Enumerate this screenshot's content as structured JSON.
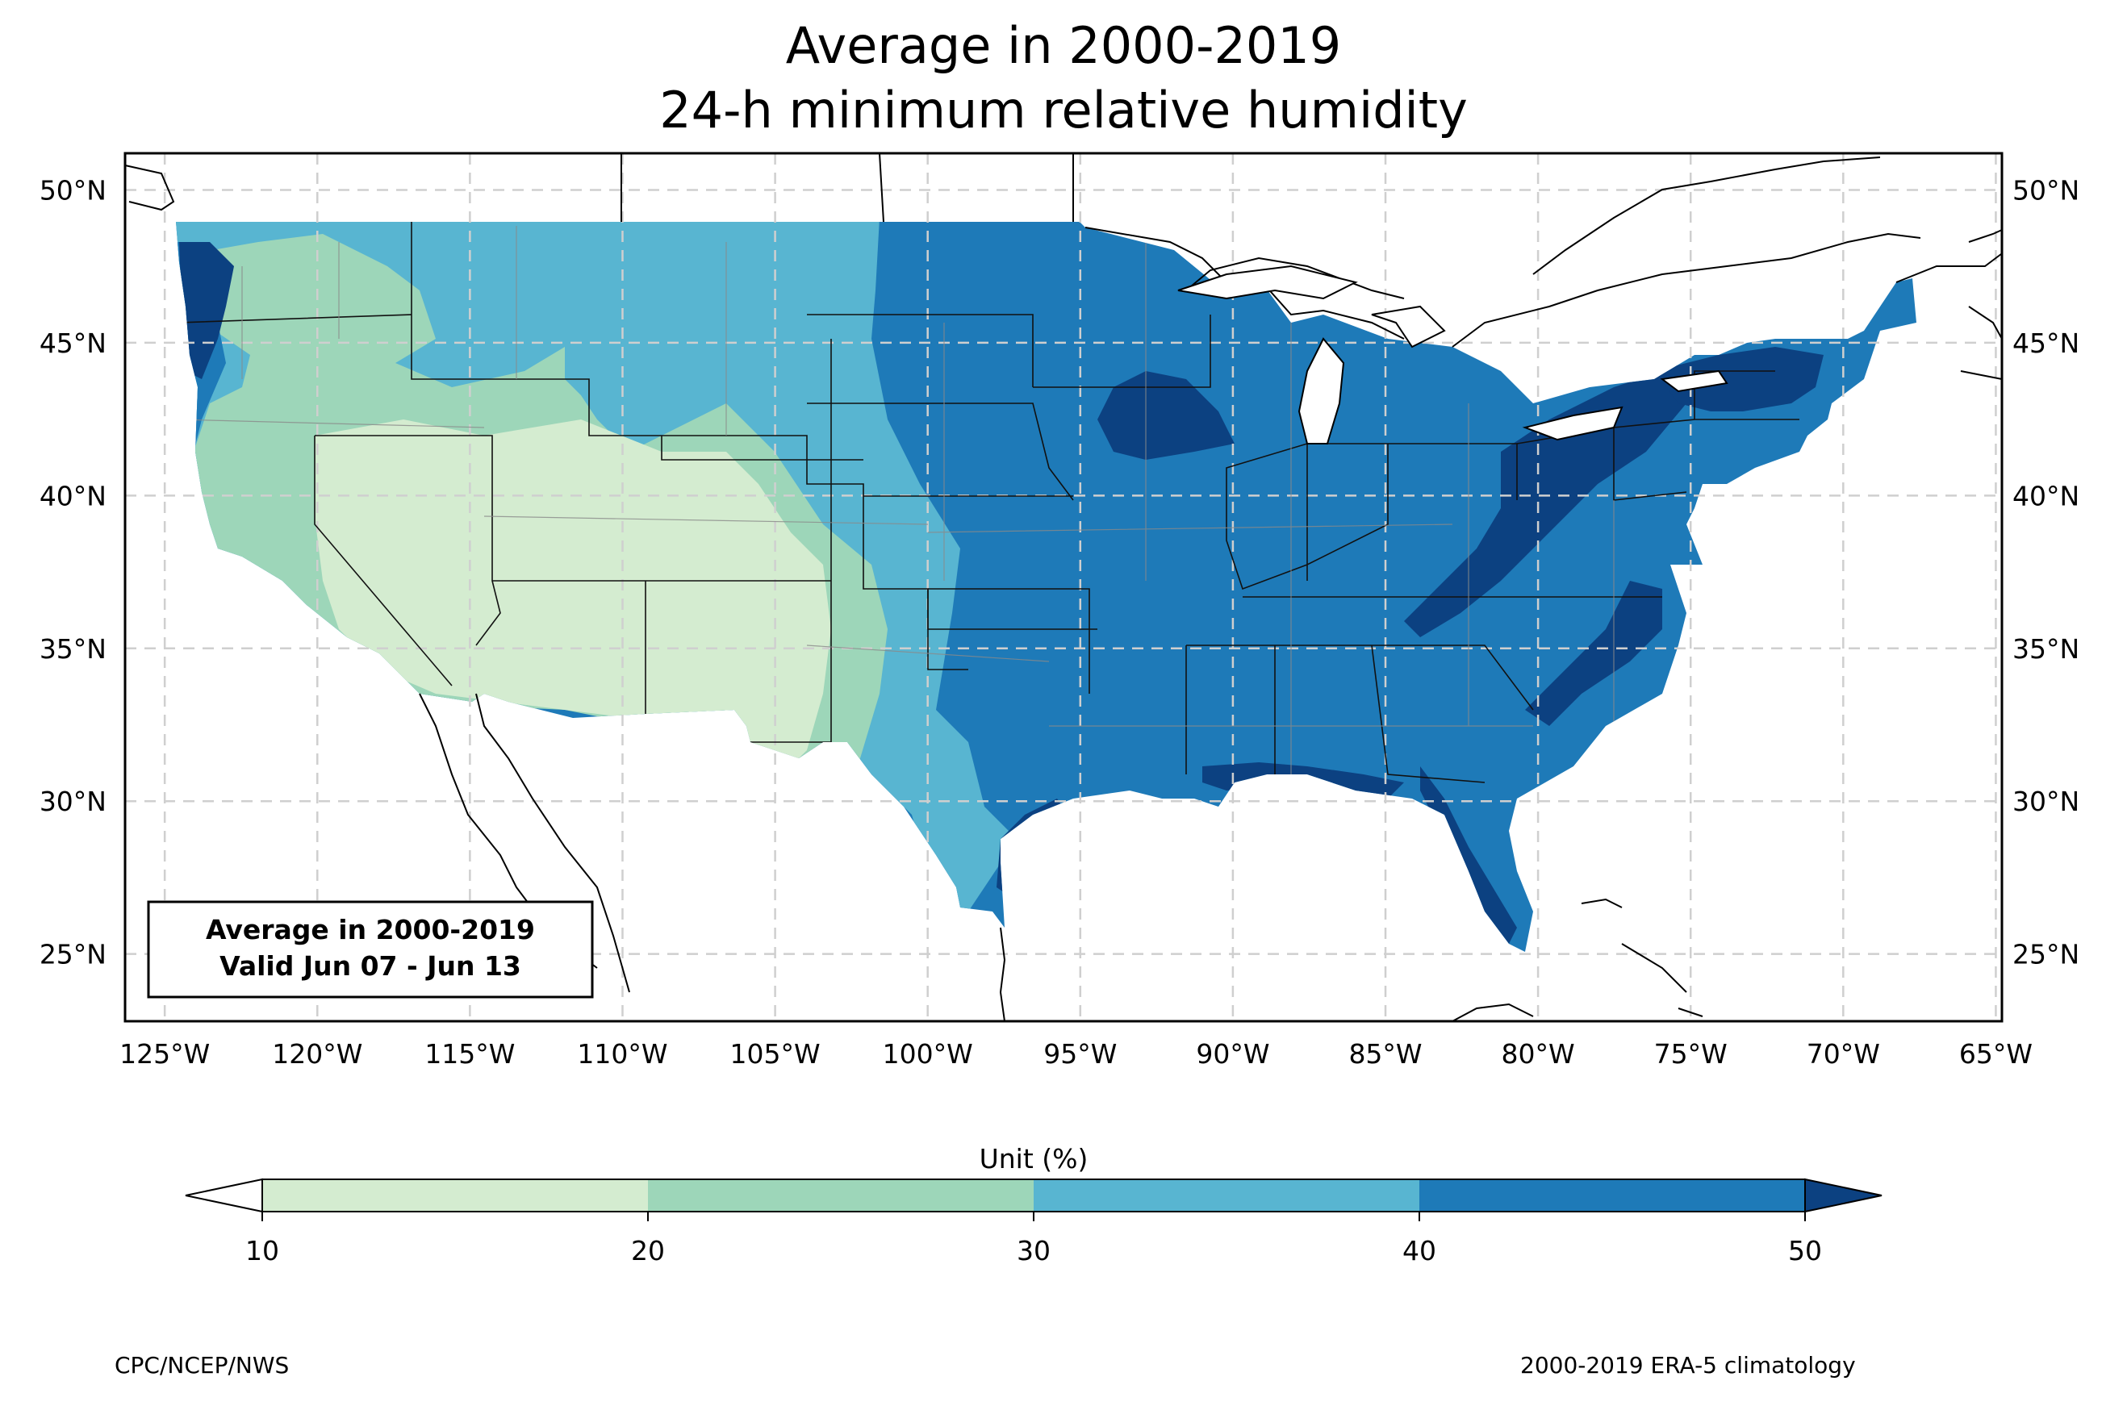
{
  "title": {
    "line1": "Average in 2000-2019",
    "line2": "24-h minimum relative humidity"
  },
  "info_box": {
    "line1": "Average in 2000-2019",
    "line2": "Valid Jun 07 - Jun 13"
  },
  "axes": {
    "lon_labels": [
      "125°W",
      "120°W",
      "115°W",
      "110°W",
      "105°W",
      "100°W",
      "95°W",
      "90°W",
      "85°W",
      "80°W",
      "75°W",
      "70°W",
      "65°W"
    ],
    "lat_labels": [
      "50°N",
      "45°N",
      "40°N",
      "35°N",
      "30°N",
      "25°N"
    ],
    "lon_values": [
      -125,
      -120,
      -115,
      -110,
      -105,
      -100,
      -95,
      -90,
      -85,
      -80,
      -75,
      -70,
      -65
    ],
    "lat_values": [
      50,
      45,
      40,
      35,
      30,
      25
    ],
    "lon_range": [
      -126.3,
      -64.8
    ],
    "lat_range": [
      22.8,
      51.2
    ],
    "grid": "dashed"
  },
  "colorbar": {
    "unit_label": "Unit (%)",
    "ticks": [
      "10",
      "20",
      "30",
      "40",
      "50"
    ],
    "levels": [
      10,
      20,
      30,
      40,
      50
    ],
    "colors": {
      "below": "#ffffff",
      "b10_20": "#d4ecd0",
      "b20_30": "#9dd6b9",
      "b30_40": "#58b5d1",
      "b40_50": "#1e7ab8",
      "above": "#0c4181"
    },
    "extend": "both"
  },
  "footer": {
    "left": "CPC/NCEP/NWS",
    "right": "2000-2019 ERA-5 climatology"
  }
}
